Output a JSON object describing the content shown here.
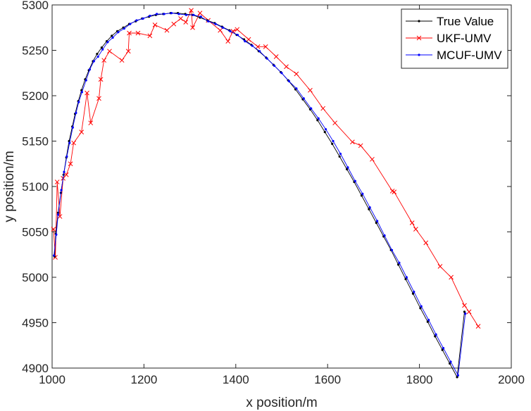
{
  "chart_data": {
    "type": "line",
    "title": "",
    "xlabel": "x position/m",
    "ylabel": "y position/m",
    "xlim": [
      1000,
      2000
    ],
    "ylim": [
      4900,
      5300
    ],
    "xticks": [
      "1000",
      "1200",
      "1400",
      "1600",
      "1800",
      "2000"
    ],
    "yticks": [
      "4900",
      "4950",
      "5000",
      "5050",
      "5100",
      "5150",
      "5200",
      "5250",
      "5300"
    ],
    "grid": false,
    "legend_position": "top-right",
    "series": [
      {
        "name": "True Value",
        "color": "#000000",
        "marker": "dot",
        "points": [
          [
            1005,
            5023
          ],
          [
            1008,
            5048
          ],
          [
            1013,
            5071
          ],
          [
            1019,
            5093
          ],
          [
            1025,
            5113
          ],
          [
            1031,
            5132
          ],
          [
            1037,
            5150
          ],
          [
            1044,
            5166
          ],
          [
            1050,
            5180
          ],
          [
            1057,
            5194
          ],
          [
            1064,
            5206
          ],
          [
            1072,
            5218
          ],
          [
            1080,
            5228
          ],
          [
            1089,
            5238
          ],
          [
            1098,
            5246
          ],
          [
            1108,
            5253
          ],
          [
            1119,
            5260
          ],
          [
            1130,
            5266
          ],
          [
            1142,
            5271
          ],
          [
            1155,
            5275
          ],
          [
            1168,
            5279
          ],
          [
            1182,
            5282
          ],
          [
            1196,
            5285
          ],
          [
            1211,
            5287
          ],
          [
            1226,
            5289
          ],
          [
            1242,
            5290
          ],
          [
            1258,
            5291
          ],
          [
            1274,
            5291
          ],
          [
            1290,
            5290
          ],
          [
            1306,
            5289
          ],
          [
            1322,
            5286
          ],
          [
            1338,
            5283
          ],
          [
            1354,
            5280
          ],
          [
            1370,
            5276
          ],
          [
            1386,
            5272
          ],
          [
            1402,
            5267
          ],
          [
            1418,
            5262
          ],
          [
            1434,
            5256
          ],
          [
            1450,
            5249
          ],
          [
            1466,
            5242
          ],
          [
            1482,
            5234
          ],
          [
            1498,
            5226
          ],
          [
            1514,
            5217
          ],
          [
            1530,
            5207
          ],
          [
            1546,
            5196
          ],
          [
            1562,
            5185
          ],
          [
            1578,
            5173
          ],
          [
            1594,
            5160
          ],
          [
            1610,
            5147
          ],
          [
            1626,
            5133
          ],
          [
            1642,
            5119
          ],
          [
            1658,
            5105
          ],
          [
            1674,
            5090
          ],
          [
            1690,
            5075
          ],
          [
            1706,
            5060
          ],
          [
            1722,
            5045
          ],
          [
            1738,
            5030
          ],
          [
            1754,
            5014
          ],
          [
            1770,
            4998
          ],
          [
            1786,
            4982
          ],
          [
            1802,
            4966
          ],
          [
            1818,
            4951
          ],
          [
            1834,
            4935
          ],
          [
            1850,
            4920
          ],
          [
            1866,
            4905
          ],
          [
            1882,
            4890
          ],
          [
            1898,
            4962
          ]
        ]
      },
      {
        "name": "UKF-UMV",
        "color": "#ff0000",
        "marker": "x",
        "points": [
          [
            1003,
            5053
          ],
          [
            1007,
            5022
          ],
          [
            1011,
            5105
          ],
          [
            1017,
            5067
          ],
          [
            1024,
            5109
          ],
          [
            1031,
            5113
          ],
          [
            1040,
            5125
          ],
          [
            1047,
            5148
          ],
          [
            1064,
            5160
          ],
          [
            1076,
            5203
          ],
          [
            1084,
            5170
          ],
          [
            1102,
            5197
          ],
          [
            1106,
            5218
          ],
          [
            1113,
            5239
          ],
          [
            1125,
            5249
          ],
          [
            1152,
            5239
          ],
          [
            1166,
            5249
          ],
          [
            1168,
            5269
          ],
          [
            1187,
            5269
          ],
          [
            1213,
            5266
          ],
          [
            1224,
            5278
          ],
          [
            1250,
            5272
          ],
          [
            1265,
            5279
          ],
          [
            1280,
            5285
          ],
          [
            1291,
            5281
          ],
          [
            1303,
            5294
          ],
          [
            1306,
            5275
          ],
          [
            1322,
            5291
          ],
          [
            1340,
            5283
          ],
          [
            1366,
            5272
          ],
          [
            1383,
            5260
          ],
          [
            1394,
            5271
          ],
          [
            1403,
            5273
          ],
          [
            1428,
            5262
          ],
          [
            1448,
            5254
          ],
          [
            1465,
            5254
          ],
          [
            1488,
            5243
          ],
          [
            1510,
            5232
          ],
          [
            1532,
            5224
          ],
          [
            1562,
            5206
          ],
          [
            1590,
            5186
          ],
          [
            1616,
            5170
          ],
          [
            1654,
            5149
          ],
          [
            1672,
            5145
          ],
          [
            1697,
            5130
          ],
          [
            1741,
            5095
          ],
          [
            1745,
            5094
          ],
          [
            1784,
            5060
          ],
          [
            1792,
            5053
          ],
          [
            1814,
            5038
          ],
          [
            1845,
            5012
          ],
          [
            1869,
            5000
          ],
          [
            1898,
            4969
          ],
          [
            1908,
            4962
          ],
          [
            1928,
            4946
          ]
        ]
      },
      {
        "name": "MCUF-UMV",
        "color": "#0000ff",
        "marker": "dot",
        "points": [
          [
            1004,
            5024
          ],
          [
            1009,
            5047
          ],
          [
            1013,
            5069
          ],
          [
            1020,
            5096
          ],
          [
            1026,
            5116
          ],
          [
            1032,
            5133
          ],
          [
            1038,
            5148
          ],
          [
            1045,
            5165
          ],
          [
            1052,
            5181
          ],
          [
            1058,
            5193
          ],
          [
            1065,
            5204
          ],
          [
            1074,
            5217
          ],
          [
            1082,
            5229
          ],
          [
            1091,
            5238
          ],
          [
            1100,
            5243
          ],
          [
            1110,
            5251
          ],
          [
            1121,
            5259
          ],
          [
            1132,
            5264
          ],
          [
            1144,
            5270
          ],
          [
            1157,
            5274
          ],
          [
            1170,
            5279
          ],
          [
            1184,
            5283
          ],
          [
            1198,
            5285
          ],
          [
            1213,
            5288
          ],
          [
            1228,
            5290
          ],
          [
            1244,
            5290
          ],
          [
            1260,
            5291
          ],
          [
            1276,
            5290
          ],
          [
            1292,
            5289
          ],
          [
            1308,
            5289
          ],
          [
            1324,
            5287
          ],
          [
            1340,
            5282
          ],
          [
            1356,
            5279
          ],
          [
            1372,
            5275
          ],
          [
            1388,
            5271
          ],
          [
            1404,
            5267
          ],
          [
            1420,
            5260
          ],
          [
            1436,
            5255
          ],
          [
            1452,
            5249
          ],
          [
            1468,
            5241
          ],
          [
            1484,
            5233
          ],
          [
            1500,
            5225
          ],
          [
            1516,
            5216
          ],
          [
            1532,
            5208
          ],
          [
            1548,
            5197
          ],
          [
            1564,
            5186
          ],
          [
            1580,
            5175
          ],
          [
            1596,
            5163
          ],
          [
            1612,
            5150
          ],
          [
            1628,
            5136
          ],
          [
            1644,
            5121
          ],
          [
            1660,
            5106
          ],
          [
            1676,
            5092
          ],
          [
            1692,
            5077
          ],
          [
            1708,
            5062
          ],
          [
            1724,
            5046
          ],
          [
            1740,
            5030
          ],
          [
            1756,
            5016
          ],
          [
            1772,
            5000
          ],
          [
            1788,
            4984
          ],
          [
            1804,
            4968
          ],
          [
            1820,
            4953
          ],
          [
            1836,
            4937
          ],
          [
            1852,
            4922
          ],
          [
            1868,
            4907
          ],
          [
            1884,
            4892
          ],
          [
            1900,
            4960
          ]
        ]
      }
    ]
  }
}
